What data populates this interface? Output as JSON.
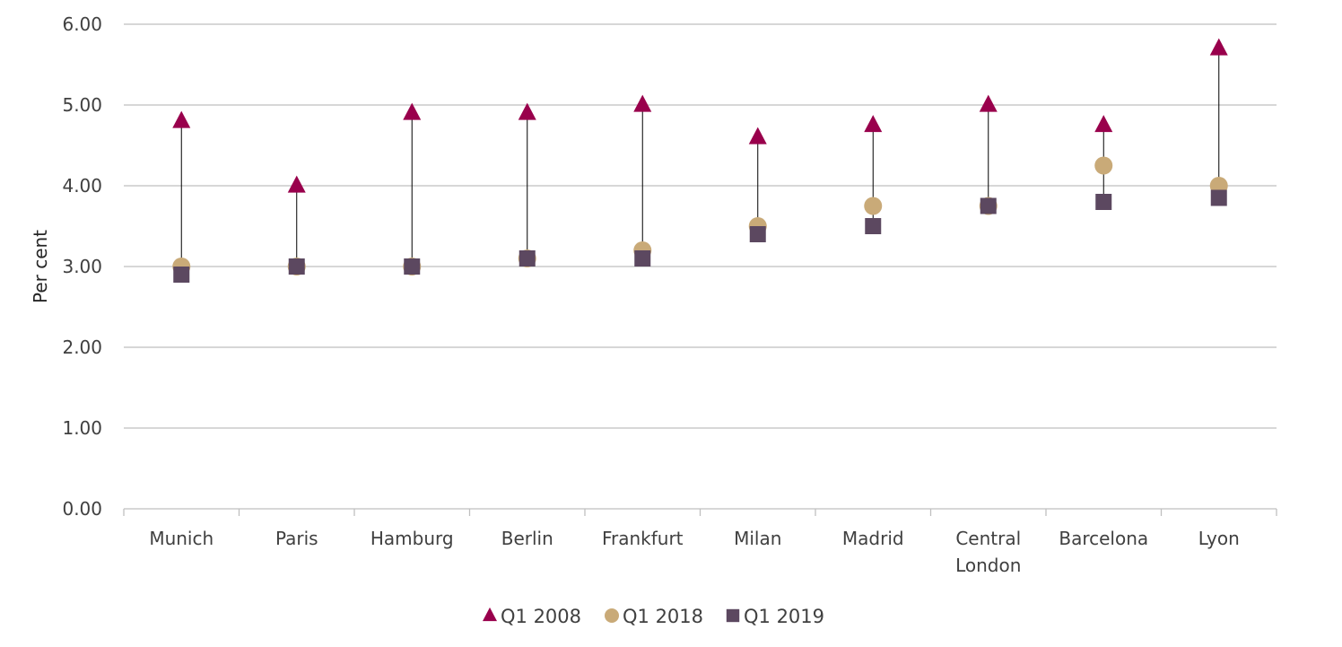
{
  "colors": {
    "q1_2008": "#99004c",
    "q1_2018": "#c9aa78",
    "q1_2019": "#5c4860",
    "grid": "#bfbfbf",
    "connector": "#000000"
  },
  "chart_data": {
    "type": "scatter",
    "title": "",
    "xlabel": "",
    "ylabel": "Per cent",
    "ylim": [
      0,
      6
    ],
    "ytick_step": 1,
    "ytick_labels": [
      "0.00",
      "1.00",
      "2.00",
      "3.00",
      "4.00",
      "5.00",
      "6.00"
    ],
    "grid": true,
    "legend_position": "bottom-center",
    "categories": [
      "Munich",
      "Paris",
      "Hamburg",
      "Berlin",
      "Frankfurt",
      "Milan",
      "Madrid",
      "Central London",
      "Barcelona",
      "Lyon"
    ],
    "series": [
      {
        "name": "Q1 2008",
        "marker": "triangle",
        "color_key": "q1_2008",
        "values": [
          4.8,
          4.0,
          4.9,
          4.9,
          5.0,
          4.6,
          4.75,
          5.0,
          4.75,
          5.7
        ]
      },
      {
        "name": "Q1 2018",
        "marker": "circle",
        "color_key": "q1_2018",
        "values": [
          3.0,
          3.0,
          3.0,
          3.1,
          3.2,
          3.5,
          3.75,
          3.75,
          4.25,
          4.0
        ]
      },
      {
        "name": "Q1 2019",
        "marker": "square",
        "color_key": "q1_2019",
        "values": [
          2.9,
          3.0,
          3.0,
          3.1,
          3.1,
          3.4,
          3.5,
          3.75,
          3.8,
          3.85
        ]
      }
    ]
  }
}
